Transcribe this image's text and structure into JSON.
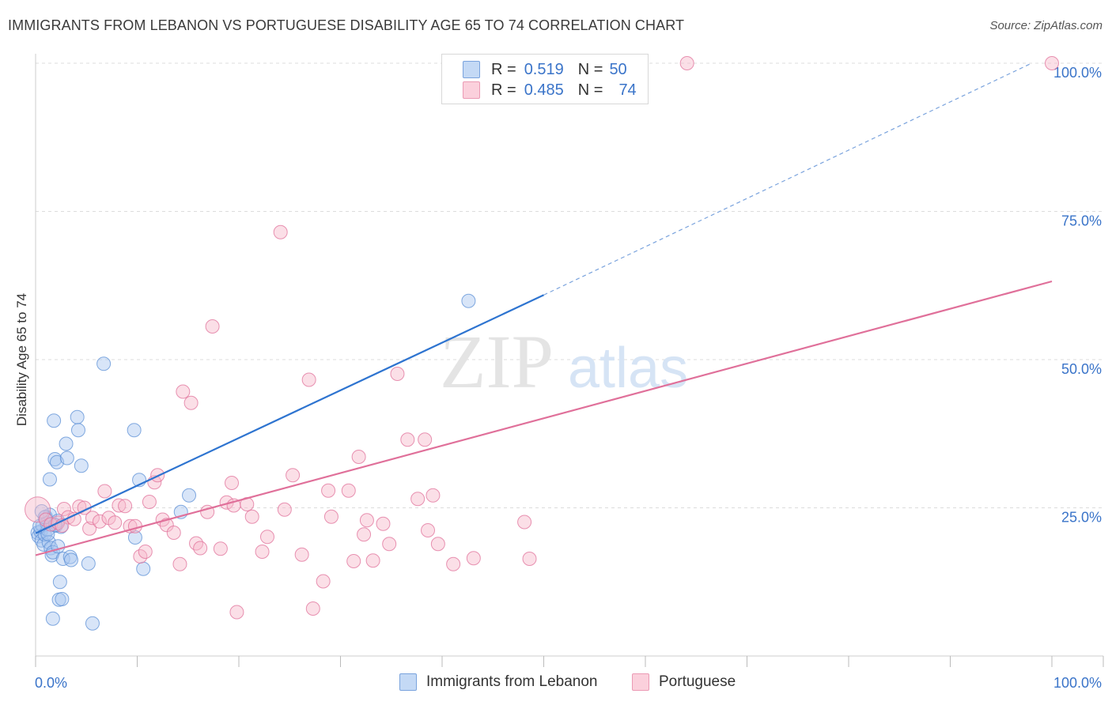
{
  "header": {
    "title": "IMMIGRANTS FROM LEBANON VS PORTUGUESE DISABILITY AGE 65 TO 74 CORRELATION CHART",
    "source": "Source: ZipAtlas.com"
  },
  "watermark": {
    "zip": "ZIP",
    "atlas": "atlas"
  },
  "legend": {
    "rows": [
      {
        "r_label": "R =",
        "r_value": "0.519",
        "n_label": "N =",
        "n_value": "50",
        "color": "#a8c6f0"
      },
      {
        "r_label": "R =",
        "r_value": "0.485",
        "n_label": "N =",
        "n_value": "74",
        "color": "#f7b8ca"
      }
    ]
  },
  "chart_data": {
    "type": "scatter",
    "title": "IMMIGRANTS FROM LEBANON VS PORTUGUESE DISABILITY AGE 65 TO 74 CORRELATION CHART",
    "xlabel": "",
    "ylabel": "Disability Age 65 to 74",
    "xlim": [
      0,
      100
    ],
    "ylim": [
      0,
      100
    ],
    "x_tick_labels": [
      "0.0%",
      "100.0%"
    ],
    "y_tick_labels": [
      "25.0%",
      "50.0%",
      "75.0%",
      "100.0%"
    ],
    "y_ticks": [
      25,
      50,
      75,
      100
    ],
    "grid": true,
    "legend_position": "bottom",
    "series": [
      {
        "name": "Immigrants from Lebanon",
        "color": "#5b8fd6",
        "fill": "#a8c6f0",
        "trend": {
          "x0": 0,
          "y0": 20.7,
          "x1": 50,
          "y1": 60.9,
          "dash_x1": 98,
          "dash_y1": 100
        },
        "points": [
          [
            0.2,
            20.8
          ],
          [
            0.3,
            20.2
          ],
          [
            0.5,
            21.0
          ],
          [
            0.6,
            19.5
          ],
          [
            0.7,
            22.0
          ],
          [
            0.8,
            18.8
          ],
          [
            0.9,
            20.5
          ],
          [
            1.0,
            23.5
          ],
          [
            1.1,
            22.4
          ],
          [
            1.2,
            21.3
          ],
          [
            1.3,
            19.2
          ],
          [
            1.4,
            23.8
          ],
          [
            1.5,
            18.2
          ],
          [
            1.6,
            17.0
          ],
          [
            1.7,
            17.5
          ],
          [
            1.8,
            39.7
          ],
          [
            1.9,
            33.2
          ],
          [
            2.0,
            22.0
          ],
          [
            2.1,
            32.7
          ],
          [
            2.2,
            18.5
          ],
          [
            2.3,
            9.5
          ],
          [
            2.4,
            12.5
          ],
          [
            2.5,
            21.8
          ],
          [
            2.6,
            9.6
          ],
          [
            2.7,
            16.4
          ],
          [
            3.0,
            35.8
          ],
          [
            3.1,
            33.4
          ],
          [
            3.4,
            16.7
          ],
          [
            3.5,
            16.2
          ],
          [
            4.1,
            40.3
          ],
          [
            4.2,
            38.1
          ],
          [
            4.5,
            32.1
          ],
          [
            5.2,
            15.6
          ],
          [
            5.6,
            5.5
          ],
          [
            6.7,
            49.3
          ],
          [
            9.7,
            38.1
          ],
          [
            9.8,
            20.0
          ],
          [
            10.2,
            29.7
          ],
          [
            10.6,
            14.7
          ],
          [
            14.3,
            24.3
          ],
          [
            15.1,
            27.1
          ],
          [
            42.6,
            59.9
          ],
          [
            1.4,
            29.8
          ],
          [
            0.4,
            21.9
          ],
          [
            1.7,
            6.3
          ],
          [
            2.2,
            22.8
          ],
          [
            0.9,
            23.4
          ],
          [
            1.2,
            20.6
          ],
          [
            0.6,
            24.4
          ],
          [
            1.9,
            22.1
          ]
        ]
      },
      {
        "name": "Portuguese",
        "color": "#e0709a",
        "fill": "#f7b8ca",
        "trend": {
          "x0": 0,
          "y0": 17.0,
          "x1": 100,
          "y1": 63.2
        },
        "points": [
          [
            0.2,
            24.7
          ],
          [
            1.0,
            23.0
          ],
          [
            1.5,
            22.2
          ],
          [
            2.2,
            22.5
          ],
          [
            2.8,
            24.8
          ],
          [
            3.2,
            23.4
          ],
          [
            3.8,
            23.1
          ],
          [
            4.3,
            25.2
          ],
          [
            4.8,
            25.0
          ],
          [
            5.3,
            21.5
          ],
          [
            5.6,
            23.3
          ],
          [
            6.3,
            22.7
          ],
          [
            6.8,
            27.8
          ],
          [
            7.2,
            23.3
          ],
          [
            7.8,
            22.5
          ],
          [
            8.2,
            25.4
          ],
          [
            8.8,
            25.3
          ],
          [
            9.3,
            21.9
          ],
          [
            9.8,
            21.9
          ],
          [
            10.3,
            16.8
          ],
          [
            10.8,
            17.6
          ],
          [
            11.2,
            26.0
          ],
          [
            11.7,
            29.3
          ],
          [
            12.0,
            30.5
          ],
          [
            12.5,
            23.0
          ],
          [
            12.9,
            22.1
          ],
          [
            13.6,
            20.8
          ],
          [
            14.2,
            15.5
          ],
          [
            14.5,
            44.6
          ],
          [
            15.3,
            42.7
          ],
          [
            15.8,
            19.0
          ],
          [
            16.2,
            18.2
          ],
          [
            16.9,
            24.3
          ],
          [
            17.4,
            55.6
          ],
          [
            18.2,
            18.1
          ],
          [
            18.8,
            25.9
          ],
          [
            19.3,
            29.2
          ],
          [
            19.5,
            25.4
          ],
          [
            19.8,
            7.4
          ],
          [
            20.8,
            25.6
          ],
          [
            21.3,
            23.5
          ],
          [
            22.3,
            17.6
          ],
          [
            22.8,
            20.1
          ],
          [
            24.1,
            71.5
          ],
          [
            24.5,
            24.7
          ],
          [
            25.3,
            30.5
          ],
          [
            26.2,
            17.1
          ],
          [
            26.9,
            46.6
          ],
          [
            27.3,
            8.0
          ],
          [
            28.3,
            12.6
          ],
          [
            28.8,
            27.9
          ],
          [
            29.1,
            23.5
          ],
          [
            30.8,
            27.9
          ],
          [
            31.3,
            16.0
          ],
          [
            31.8,
            33.6
          ],
          [
            32.3,
            20.5
          ],
          [
            32.6,
            22.9
          ],
          [
            33.2,
            16.1
          ],
          [
            34.2,
            22.3
          ],
          [
            34.8,
            18.9
          ],
          [
            35.6,
            47.6
          ],
          [
            36.6,
            36.5
          ],
          [
            37.6,
            26.5
          ],
          [
            38.3,
            36.5
          ],
          [
            38.6,
            21.2
          ],
          [
            39.1,
            27.1
          ],
          [
            39.6,
            18.9
          ],
          [
            41.1,
            15.5
          ],
          [
            43.1,
            16.5
          ],
          [
            48.1,
            22.6
          ],
          [
            48.6,
            16.4
          ],
          [
            64.1,
            100.0
          ],
          [
            100.0,
            100.0
          ],
          [
            2.6,
            22.0
          ]
        ]
      }
    ]
  }
}
